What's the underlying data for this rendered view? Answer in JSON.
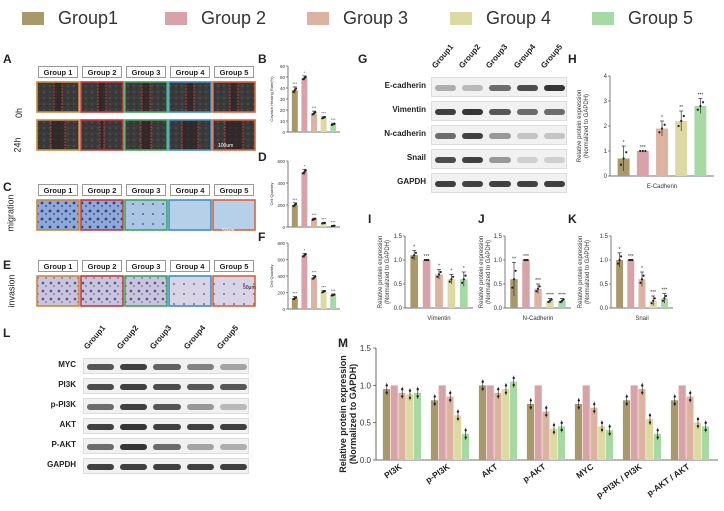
{
  "colors": {
    "g1": "#a9996a",
    "g2": "#d7a3a8",
    "g3": "#dcb3a1",
    "g4": "#dcd9a3",
    "g5": "#a7d9a4"
  },
  "legend": [
    "Group1",
    "Group 2",
    "Group 3",
    "Group 4",
    "Group 5"
  ],
  "panels": {
    "A": "A",
    "B": "B",
    "C": "C",
    "D": "D",
    "E": "E",
    "F": "F",
    "G": "G",
    "H": "H",
    "I": "I",
    "J": "J",
    "K": "K",
    "L": "L",
    "M": "M"
  },
  "tile_groups": [
    "Group 1",
    "Group 2",
    "Group 3",
    "Group 4",
    "Group 5"
  ],
  "rows": {
    "r0h": "0h",
    "r24h": "24h",
    "migration": "migration",
    "invasion": "invasion"
  },
  "scale_bars": {
    "s100": "100um",
    "s50": "50um",
    "s50b": "50μm"
  },
  "blot_g": {
    "lanes": [
      "Group1",
      "Group2",
      "Group3",
      "Group4",
      "Group5"
    ],
    "proteins": [
      "E-cadherin",
      "Vimentin",
      "N-cadherin",
      "Snail",
      "GAPDH"
    ]
  },
  "blot_l": {
    "lanes": [
      "Group1",
      "Group2",
      "Group3",
      "Group4",
      "Group5"
    ],
    "proteins": [
      "MYC",
      "PI3K",
      "p-PI3K",
      "AKT",
      "P-AKT",
      "GAPDH"
    ]
  },
  "chart_data": [
    {
      "id": "B",
      "type": "bar",
      "categories": [
        "Group1",
        "Group 2",
        "Group 3",
        "Group 4",
        "Group 5"
      ],
      "values": [
        38,
        49,
        17,
        13,
        7
      ],
      "errors": [
        3,
        2,
        2,
        1,
        1
      ],
      "ylabel": "Covatch Healing Rate(%)",
      "ylim": [
        0,
        60
      ],
      "yticks": [
        "0",
        "10",
        "20",
        "30",
        "40",
        "50",
        "60"
      ],
      "marks": [
        "***",
        "*",
        "***",
        "***",
        "***"
      ]
    },
    {
      "id": "D",
      "type": "bar",
      "categories": [
        "Group1",
        "Group 2",
        "Group 3",
        "Group 4",
        "Group 5"
      ],
      "values": [
        200,
        500,
        70,
        35,
        10
      ],
      "errors": [
        20,
        25,
        10,
        5,
        3
      ],
      "ylabel": "Cell Quantity",
      "ylim": [
        0,
        600
      ],
      "yticks": [
        "0",
        "200",
        "400",
        "600"
      ],
      "marks": [
        "***",
        "*",
        "***",
        "***",
        "***"
      ]
    },
    {
      "id": "F",
      "type": "bar",
      "categories": [
        "Group1",
        "Group 2",
        "Group 3",
        "Group 4",
        "Group 5"
      ],
      "values": [
        130,
        650,
        380,
        210,
        170
      ],
      "errors": [
        20,
        25,
        25,
        15,
        12
      ],
      "ylabel": "Cell Quantity",
      "ylim": [
        0,
        800
      ],
      "yticks": [
        "0",
        "200",
        "400",
        "600",
        "800"
      ],
      "marks": [
        "***",
        "*",
        "***",
        "***",
        "***"
      ]
    },
    {
      "id": "H",
      "type": "bar",
      "categories": [
        "Group1",
        "Group 2",
        "Group 3",
        "Group 4",
        "Group 5"
      ],
      "values": [
        0.7,
        1.0,
        1.9,
        2.2,
        2.8
      ],
      "errors": [
        0.5,
        0.0,
        0.3,
        0.4,
        0.3
      ],
      "ylabel": "Relative protein expression (Normalized to GAPDH)",
      "xlabel": "E-Cadherin",
      "ylim": [
        0,
        4
      ],
      "yticks": [
        "0",
        "1",
        "2",
        "3",
        "4"
      ],
      "marks": [
        "*",
        "***",
        "*",
        "**",
        "***"
      ]
    },
    {
      "id": "I",
      "type": "bar",
      "categories": [
        "Group1",
        "Group 2",
        "Group 3",
        "Group 4",
        "Group 5"
      ],
      "values": [
        1.1,
        1.0,
        0.7,
        0.6,
        0.6
      ],
      "errors": [
        0.1,
        0.0,
        0.1,
        0.1,
        0.15
      ],
      "ylabel": "Relative protein expression (Normalized to GAPDH)",
      "xlabel": "Vimentin",
      "ylim": [
        0,
        1.5
      ],
      "yticks": [
        "0.0",
        "0.5",
        "1.0",
        "1.5"
      ],
      "marks": [
        "*",
        "***",
        "*",
        "*",
        "*"
      ]
    },
    {
      "id": "J",
      "type": "bar",
      "categories": [
        "Group1",
        "Group 2",
        "Group 3",
        "Group 4",
        "Group 5"
      ],
      "values": [
        0.6,
        1.0,
        0.4,
        0.15,
        0.15
      ],
      "errors": [
        0.35,
        0.0,
        0.1,
        0.05,
        0.05
      ],
      "ylabel": "Relative protein expression (Normalized to GAPDH)",
      "xlabel": "N-Cadherin",
      "ylim": [
        0,
        1.5
      ],
      "yticks": [
        "0.0",
        "0.5",
        "1.0",
        "1.5"
      ],
      "marks": [
        "**",
        "***",
        "***",
        "****",
        "****"
      ]
    },
    {
      "id": "K",
      "type": "bar",
      "categories": [
        "Group1",
        "Group 2",
        "Group 3",
        "Group 4",
        "Group 5"
      ],
      "values": [
        1.0,
        1.0,
        0.6,
        0.15,
        0.2
      ],
      "errors": [
        0.15,
        0.0,
        0.15,
        0.1,
        0.1
      ],
      "ylabel": "Relative protein expression (Normalized to GAPDH)",
      "xlabel": "Snail",
      "ylim": [
        0,
        1.5
      ],
      "yticks": [
        "0.0",
        "0.5",
        "1.0",
        "1.5"
      ],
      "marks": [
        "*",
        "***",
        "*",
        "***",
        "***"
      ]
    },
    {
      "id": "M",
      "type": "bar",
      "categories": [
        "PI3K",
        "p-PI3K",
        "AKT",
        "p-AKT",
        "MYC",
        "p-PI3K / PI3K",
        "p-AKT / AKT"
      ],
      "series": [
        {
          "name": "Group1",
          "values": [
            0.95,
            0.8,
            1.0,
            0.75,
            0.75,
            0.8,
            0.8
          ]
        },
        {
          "name": "Group 2",
          "values": [
            1.0,
            1.0,
            1.0,
            1.0,
            1.0,
            1.0,
            1.0
          ]
        },
        {
          "name": "Group 3",
          "values": [
            0.9,
            0.85,
            0.9,
            0.65,
            0.7,
            0.95,
            0.85
          ]
        },
        {
          "name": "Group 4",
          "values": [
            0.88,
            0.6,
            0.95,
            0.42,
            0.45,
            0.55,
            0.5
          ]
        },
        {
          "name": "Group 5",
          "values": [
            0.9,
            0.35,
            1.05,
            0.45,
            0.4,
            0.35,
            0.45
          ]
        }
      ],
      "ylabel": "Relative protein expression (Normalized to GAPDH)",
      "ylim": [
        0,
        1.5
      ],
      "yticks": [
        "0.0",
        "0.5",
        "1.0",
        "1.5"
      ]
    }
  ]
}
